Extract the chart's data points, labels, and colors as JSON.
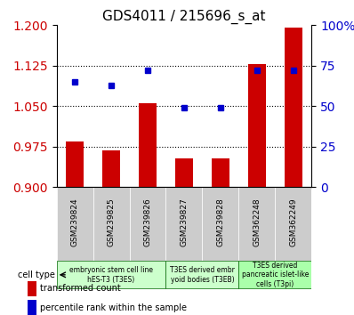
{
  "title": "GDS4011 / 215696_s_at",
  "samples": [
    "GSM239824",
    "GSM239825",
    "GSM239826",
    "GSM239827",
    "GSM239828",
    "GSM362248",
    "GSM362249"
  ],
  "transformed_count": [
    0.984,
    0.968,
    1.055,
    0.953,
    0.953,
    1.128,
    1.195
  ],
  "percentile_rank": [
    65,
    63,
    72,
    49,
    49,
    72,
    72
  ],
  "ylim_left": [
    0.9,
    1.2
  ],
  "ylim_right": [
    0,
    100
  ],
  "yticks_left": [
    0.9,
    0.975,
    1.05,
    1.125,
    1.2
  ],
  "yticks_right": [
    0,
    25,
    50,
    75,
    100
  ],
  "bar_color": "#cc0000",
  "dot_color": "#0000cc",
  "cell_type_groups": [
    {
      "label": "embryonic stem cell line\nhES-T3 (T3ES)",
      "start": 0,
      "end": 3,
      "color": "#ccffcc"
    },
    {
      "label": "T3ES derived embr\nyoid bodies (T3EB)",
      "start": 3,
      "end": 5,
      "color": "#ccffcc"
    },
    {
      "label": "T3ES derived\npancreatic islet-like\ncells (T3pi)",
      "start": 5,
      "end": 7,
      "color": "#aaffaa"
    }
  ],
  "legend_labels": [
    "transformed count",
    "percentile rank within the sample"
  ],
  "cell_type_label": "cell type",
  "background_plot": "#ffffff",
  "xtick_bg": "#cccccc",
  "grid_color": "#000000",
  "right_axis_color": "#0000cc",
  "left_axis_color": "#cc0000"
}
